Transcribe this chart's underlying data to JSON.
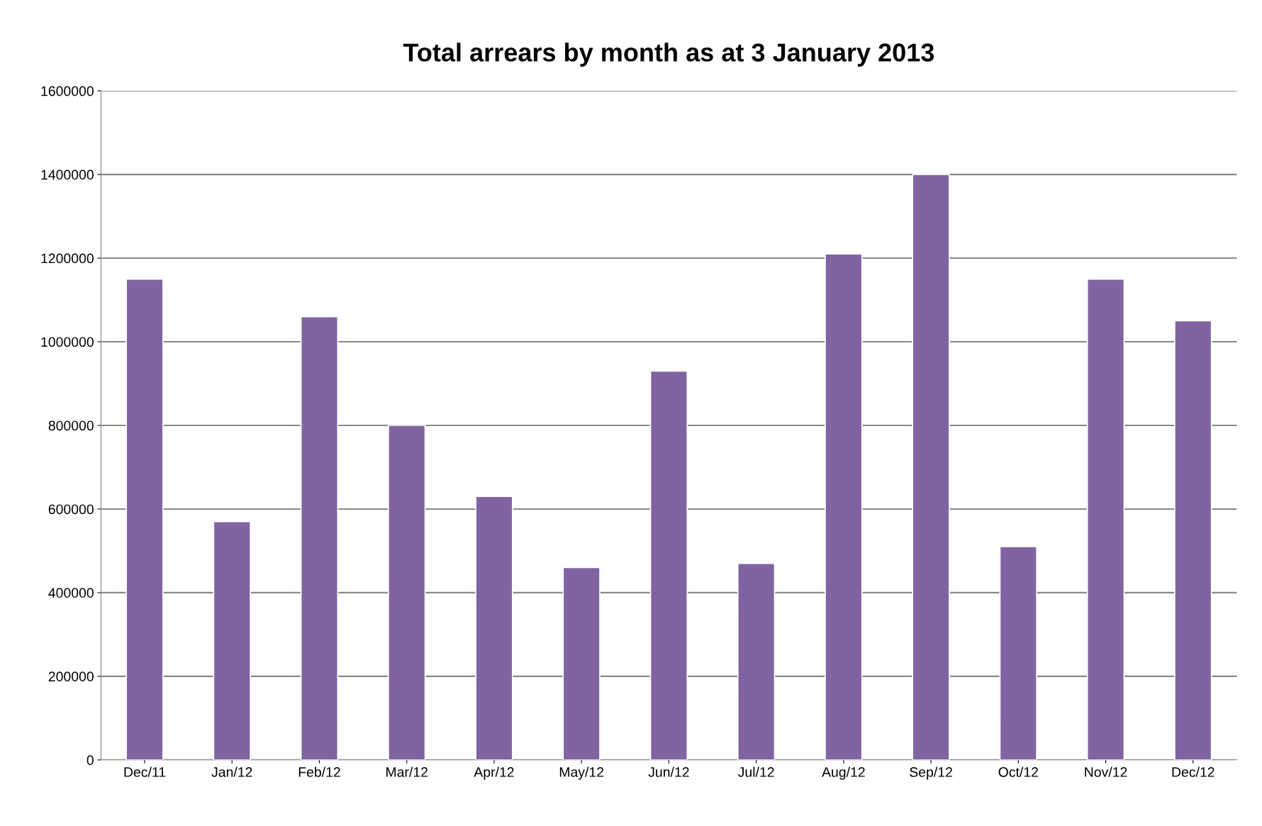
{
  "chart_data": {
    "type": "bar",
    "title": "Total arrears by month as at 3 January 2013",
    "categories": [
      "Dec/11",
      "Jan/12",
      "Feb/12",
      "Mar/12",
      "Apr/12",
      "May/12",
      "Jun/12",
      "Jul/12",
      "Aug/12",
      "Sep/12",
      "Oct/12",
      "Nov/12",
      "Dec/12"
    ],
    "values": [
      1150000,
      570000,
      1060000,
      800000,
      630000,
      460000,
      930000,
      470000,
      1210000,
      1400000,
      510000,
      1150000,
      1050000
    ],
    "color": "#8064a2",
    "ylim": [
      0,
      1600000
    ],
    "yticks": [
      0,
      200000,
      400000,
      600000,
      800000,
      1000000,
      1200000,
      1400000,
      1600000
    ],
    "grid": "y",
    "legend": false
  }
}
